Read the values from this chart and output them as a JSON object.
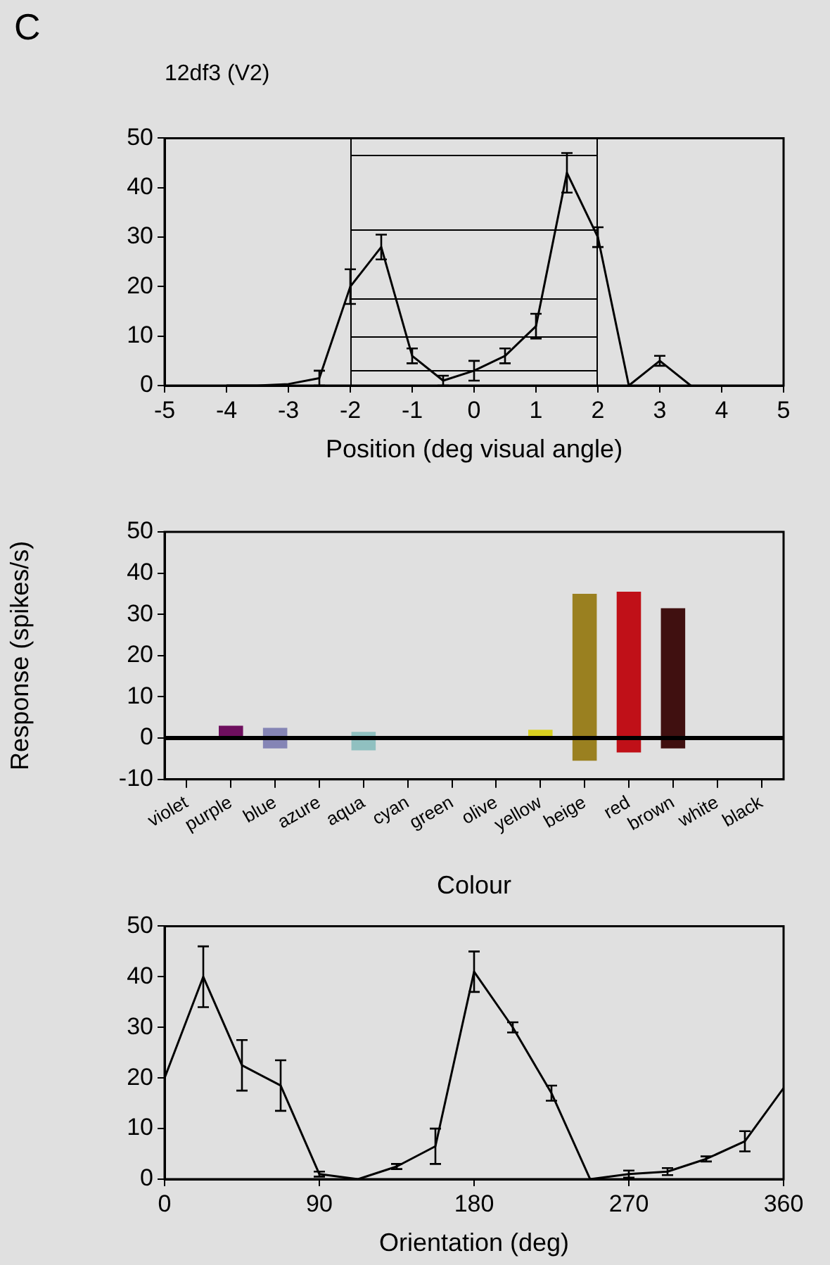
{
  "chart_data": [
    {
      "type": "line",
      "title": "12df3 (V2)",
      "annotations": [
        "C"
      ],
      "xlabel": "Position (deg visual angle)",
      "color": "#000000",
      "marker": "none",
      "x": [
        -4,
        -3.5,
        -3,
        -2.5,
        -2,
        -1.5,
        -1,
        -0.5,
        0,
        0.5,
        1,
        1.5,
        2,
        2.5,
        3,
        3.5
      ],
      "values": [
        0,
        0,
        0.3,
        1.5,
        20,
        28,
        6,
        1,
        3,
        6,
        12,
        43,
        30,
        0,
        5,
        0
      ],
      "errors": [
        null,
        null,
        null,
        1.5,
        3.5,
        2.5,
        1.5,
        1,
        2,
        1.5,
        2.5,
        4,
        2,
        null,
        1,
        null
      ],
      "xlim": [
        -5,
        5
      ],
      "xticks": [
        -5,
        -4,
        -3,
        -2,
        -1,
        0,
        1,
        2,
        3,
        4,
        5
      ],
      "ylim": [
        0,
        50
      ],
      "yticks": [
        0,
        10,
        20,
        30,
        40,
        50
      ]
    },
    {
      "type": "bar",
      "xlabel": "Colour",
      "ylabel": "Response (spikes/s)",
      "categories": [
        "violet",
        "purple",
        "blue",
        "azure",
        "aqua",
        "cyan",
        "green",
        "olive",
        "yellow",
        "beige",
        "red",
        "brown",
        "white",
        "black"
      ],
      "values": [
        null,
        3,
        5,
        null,
        4.5,
        null,
        null,
        null,
        2,
        40.5,
        39,
        34,
        null,
        null
      ],
      "base": [
        null,
        0,
        -2.5,
        null,
        -3,
        null,
        null,
        null,
        0,
        -5.5,
        -3.5,
        -2.5,
        null,
        null
      ],
      "colors": [
        "#808080",
        "#6e0f5e",
        "#8585b5",
        "#808080",
        "#90c0c0",
        "#808080",
        "#808080",
        "#808080",
        "#d8d020",
        "#9a8020",
        "#c01018",
        "#401010",
        "#808080",
        "#808080"
      ],
      "ylim": [
        -10,
        50
      ],
      "yticks": [
        -10,
        0,
        10,
        20,
        30,
        40,
        50
      ],
      "ref_lines": [
        {
          "axis": "y",
          "value": 0,
          "color": "#000000"
        }
      ]
    },
    {
      "type": "line",
      "xlabel": "Orientation (deg)",
      "color": "#000000",
      "marker": "none",
      "x": [
        0,
        22.5,
        45,
        67.5,
        90,
        112.5,
        135,
        157.5,
        180,
        202.5,
        225,
        247.5,
        270,
        292.5,
        315,
        337.5,
        360
      ],
      "values": [
        20,
        40,
        22.5,
        18.5,
        1,
        0,
        2.5,
        6.5,
        41,
        30,
        17,
        0,
        1,
        1.5,
        4,
        7.5,
        18
      ],
      "errors": [
        null,
        6,
        5,
        5,
        0.5,
        null,
        0.5,
        3.5,
        4,
        1,
        1.5,
        null,
        0.7,
        0.7,
        0.5,
        2,
        null
      ],
      "xlim": [
        0,
        360
      ],
      "xticks": [
        0,
        90,
        180,
        270,
        360
      ],
      "ylim": [
        0,
        50
      ],
      "yticks": [
        0,
        10,
        20,
        30,
        40,
        50
      ]
    }
  ]
}
